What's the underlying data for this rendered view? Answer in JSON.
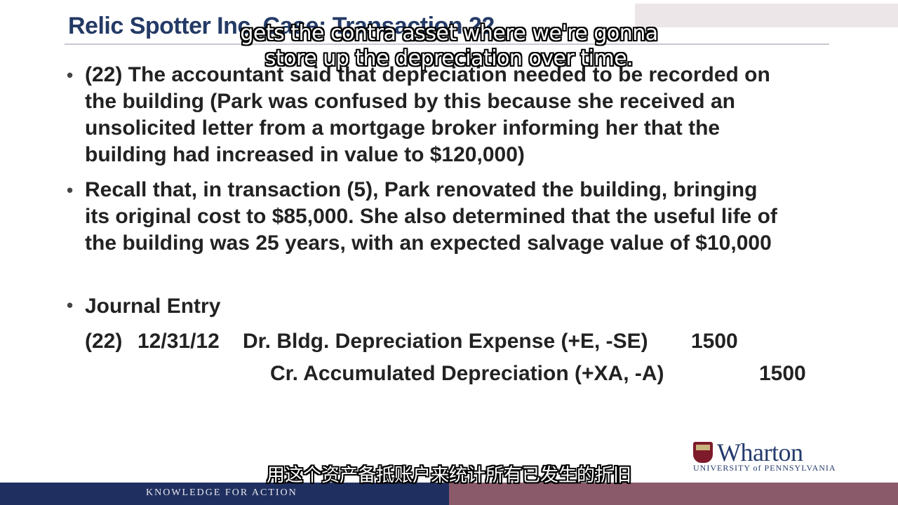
{
  "slide": {
    "title": "Relic Spotter Inc. Case: Transaction 22",
    "bullets": [
      "(22) The accountant said that depreciation needed to be recorded on\nthe building (Park was confused by this because she received an\nunsolicited letter from a mortgage broker informing her that the\nbuilding had increased in value to $120,000)",
      "Recall that, in transaction (5), Park renovated the building, bringing\nits original cost to $85,000.  She also determined that the useful life of\nthe building was 25 years, with an expected salvage value of $10,000"
    ],
    "journal": {
      "heading": "Journal Entry",
      "entry_no": "(22)",
      "date": "12/31/12",
      "debit_line": "Dr. Bldg. Depreciation Expense (+E, -SE)",
      "debit_amount": "1500",
      "credit_line": "Cr. Accumulated Depreciation (+XA, -A)",
      "credit_amount": "1500"
    }
  },
  "branding": {
    "logo_name": "Wharton",
    "logo_sub": "UNIVERSITY of PENNSYLVANIA",
    "footer_tagline": "KNOWLEDGE FOR ACTION"
  },
  "subtitles": {
    "english": "gets the contra asset where we're gonna\nstore up the depreciation over time.",
    "chinese": "用这个资产备抵账户来统计所有已发生的折旧"
  },
  "icons": {
    "logo": "university-shield-icon",
    "bullet": "bullet-dot-icon"
  },
  "colors": {
    "title": "#243a66",
    "footer_left": "#1f2f5f",
    "footer_right": "#8a5a6a"
  }
}
